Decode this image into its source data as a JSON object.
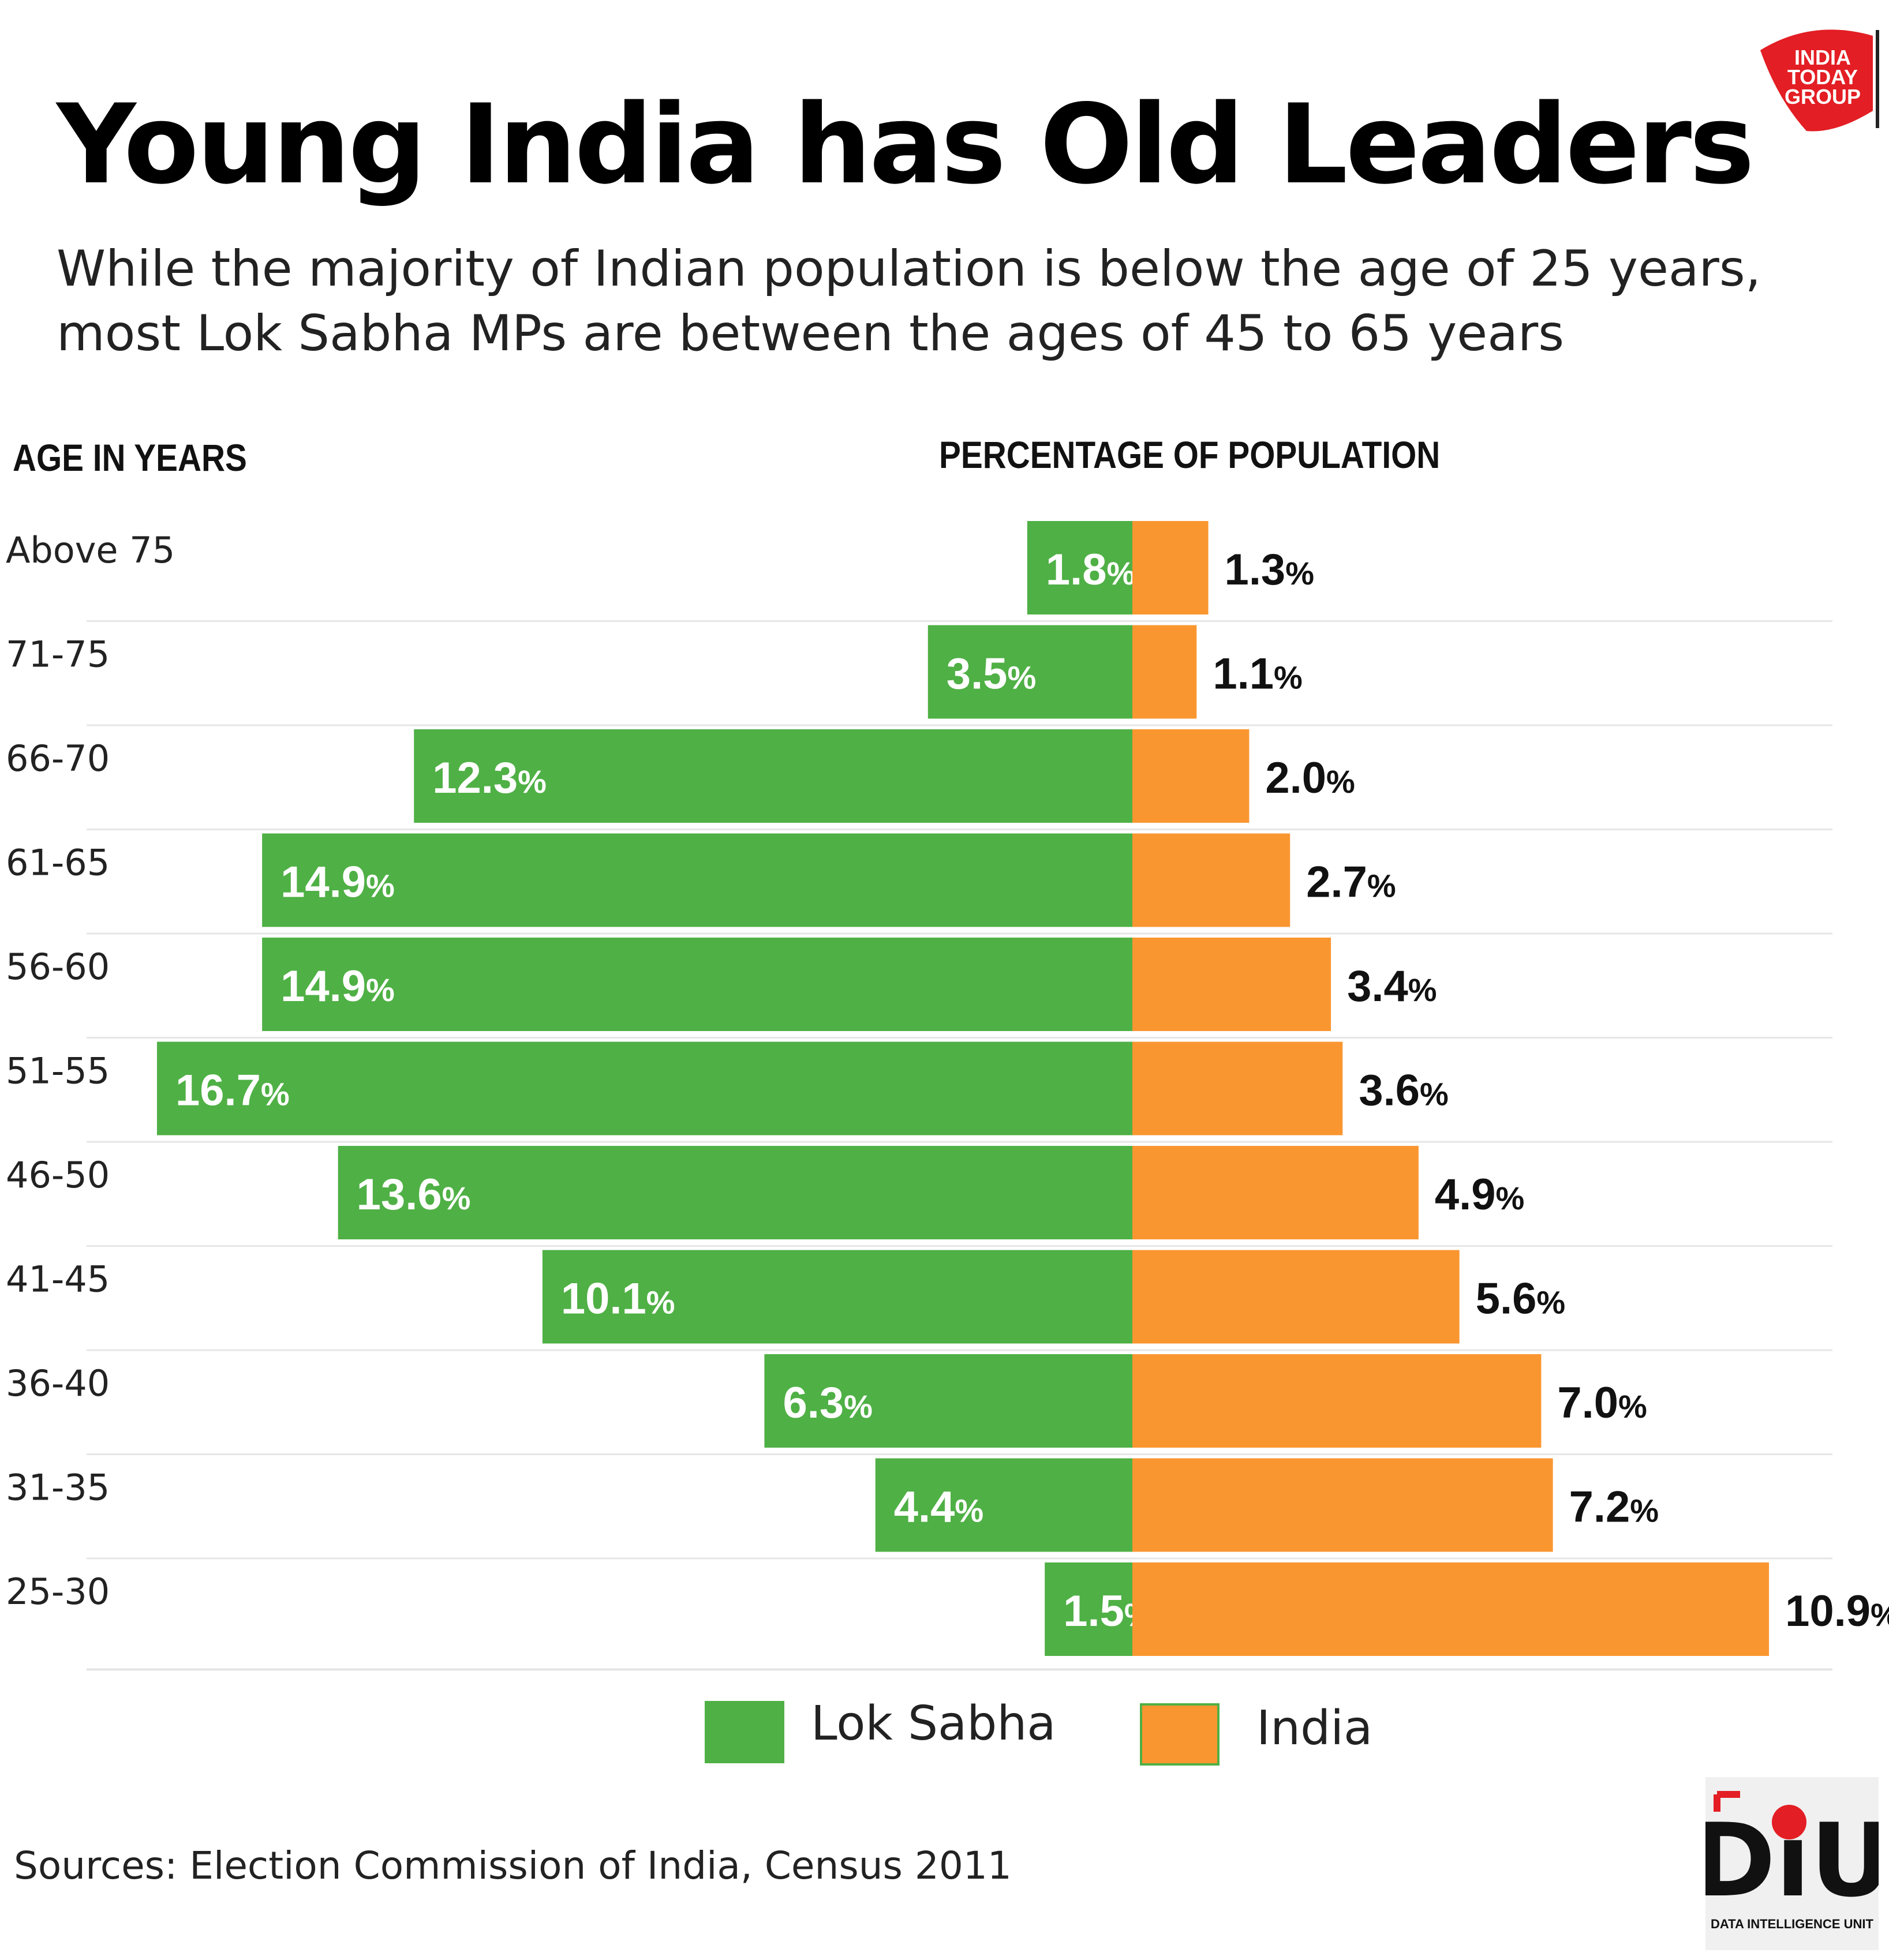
{
  "header": {
    "title": "Young India has Old Leaders",
    "subtitle": "While the majority of Indian population is below the age of 25 years, most Lok Sabha MPs are between the ages of 45 to 65 years"
  },
  "columns": {
    "age_heading": "AGE IN YEARS",
    "pct_heading": "PERCENTAGE OF POPULATION"
  },
  "legend": {
    "lok_sabha": "Lok Sabha",
    "india": "India"
  },
  "source": "Sources: Election Commission of India, Census 2011",
  "logos": {
    "top": "INDIA TODAY GROUP",
    "bottom": "DiU",
    "bottom_caption": "DATA INTELLIGENCE UNIT"
  },
  "colors": {
    "lok_sabha": "#4fb045",
    "india": "#fa9630",
    "grid": "#e6e6e6",
    "logo_red": "#e31e24"
  },
  "chart_data": {
    "type": "bar",
    "orientation": "horizontal-diverging",
    "categories": [
      "Above 75",
      "71-75",
      "66-70",
      "61-65",
      "56-60",
      "51-55",
      "46-50",
      "41-45",
      "36-40",
      "31-35",
      "25-30"
    ],
    "series": [
      {
        "name": "Lok Sabha",
        "values": [
          1.8,
          3.5,
          12.3,
          14.9,
          14.9,
          16.7,
          13.6,
          10.1,
          6.3,
          4.4,
          1.5
        ]
      },
      {
        "name": "India",
        "values": [
          1.3,
          1.1,
          2.0,
          2.7,
          3.4,
          3.6,
          4.9,
          5.6,
          7.0,
          7.2,
          10.9
        ]
      }
    ],
    "value_suffix": "%",
    "xlabel": "PERCENTAGE OF POPULATION",
    "ylabel": "AGE IN YEARS",
    "grid": true,
    "legend_position": "bottom-center"
  }
}
